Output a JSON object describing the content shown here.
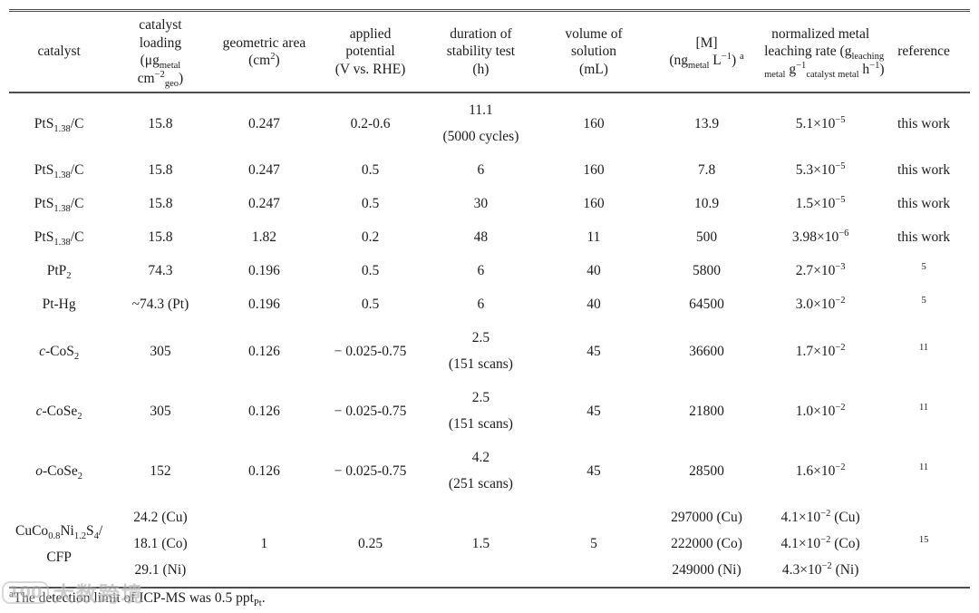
{
  "colors": {
    "background": "#ffffff",
    "text": "#1c1c1c",
    "rule": "#4d4d4d",
    "watermark": "#ababab"
  },
  "table": {
    "columns": [
      {
        "id": "catalyst",
        "header": "catalyst"
      },
      {
        "id": "catalyst-loading",
        "header": "catalyst\nloading\n(μg_{metal}\ncm^{−2}_{geo})"
      },
      {
        "id": "geometric-area",
        "header": "geometric area\n(cm^{2})"
      },
      {
        "id": "applied-potential",
        "header": "applied\npotential\n(V vs. RHE)"
      },
      {
        "id": "stability-duration",
        "header": "duration of\nstability test\n(h)"
      },
      {
        "id": "solution-volume",
        "header": "volume of\nsolution\n(mL)"
      },
      {
        "id": "metal-concentration",
        "header": "[M]\n(ng_{metal} L^{−1}) ^{a}"
      },
      {
        "id": "leaching-rate",
        "header": "normalized metal\nleaching rate (g_{leaching}\n_{metal} g^{−1}_{catalyst metal} h^{−1})"
      },
      {
        "id": "reference",
        "header": "reference"
      }
    ],
    "rows": [
      {
        "cells": [
          "PtS_{1.38}/C",
          "15.8",
          "0.247",
          "0.2-0.6",
          "11.1\n(5000 cycles)",
          "160",
          "13.9",
          "5.1×10^{−5}",
          "this work"
        ]
      },
      {
        "cells": [
          "PtS_{1.38}/C",
          "15.8",
          "0.247",
          "0.5",
          "6",
          "160",
          "7.8",
          "5.3×10^{−5}",
          "this work"
        ]
      },
      {
        "cells": [
          "PtS_{1.38}/C",
          "15.8",
          "0.247",
          "0.5",
          "30",
          "160",
          "10.9",
          "1.5×10^{−5}",
          "this work"
        ]
      },
      {
        "cells": [
          "PtS_{1.38}/C",
          "15.8",
          "1.82",
          "0.2",
          "48",
          "11",
          "500",
          "3.98×10^{−6}",
          "this work"
        ]
      },
      {
        "cells": [
          "PtP_{2}",
          "74.3",
          "0.196",
          "0.5",
          "6",
          "40",
          "5800",
          "2.7×10^{−3}",
          "^{5}"
        ]
      },
      {
        "cells": [
          "Pt-Hg",
          "~74.3 (Pt)",
          "0.196",
          "0.5",
          "6",
          "40",
          "64500",
          "3.0×10^{−2}",
          "^{5}"
        ]
      },
      {
        "cells": [
          "/{c}-CoS_{2}",
          "305",
          "0.126",
          "− 0.025-0.75",
          "2.5\n(151 scans)",
          "45",
          "36600",
          "1.7×10^{−2}",
          "^{11}"
        ]
      },
      {
        "cells": [
          "/{c}-CoSe_{2}",
          "305",
          "0.126",
          "− 0.025-0.75",
          "2.5\n(151 scans)",
          "45",
          "21800",
          "1.0×10^{−2}",
          "^{11}"
        ]
      },
      {
        "cells": [
          "/{o}-CoSe_{2}",
          "152",
          "0.126",
          "− 0.025-0.75",
          "4.2\n(251 scans)",
          "45",
          "28500",
          "1.6×10^{−2}",
          "^{11}"
        ]
      },
      {
        "cells": [
          "CuCo_{0.8}Ni_{1.2}S_{4}/\nCFP",
          "24.2 (Cu)\n18.1 (Co)\n29.1 (Ni)",
          "1",
          "0.25",
          "1.5",
          "5",
          "297000 (Cu)\n222000 (Co)\n249000 (Ni)",
          "4.1×10^{−2} (Cu)\n4.1×10^{−2} (Co)\n4.3×10^{−2} (Ni)",
          "^{15}"
        ]
      }
    ]
  },
  "footnote": {
    "text": "^{a}The detection limit of ICP-MS was 0.5 ppt_{Pt}."
  },
  "watermark": {
    "logo": "100",
    "text": "大数跨境"
  }
}
